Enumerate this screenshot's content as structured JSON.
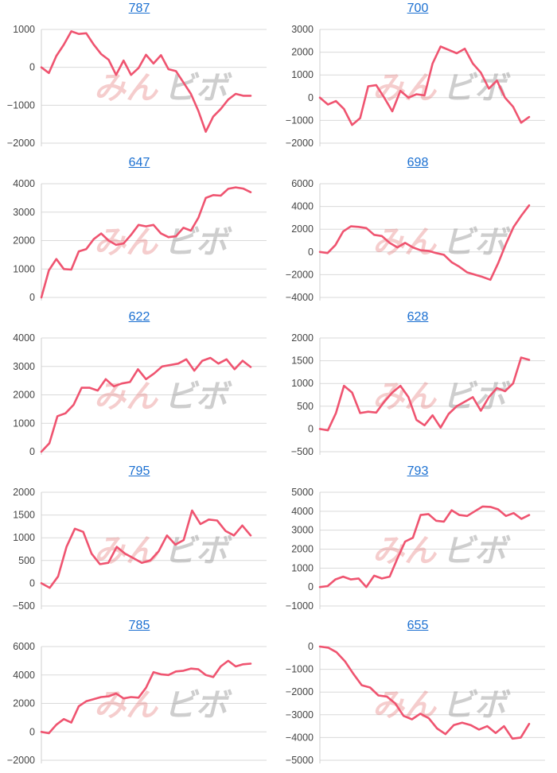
{
  "watermark": {
    "left": "みん",
    "right": "ビボ",
    "left_color": "#e57373",
    "right_color": "#9e9e9e"
  },
  "colors": {
    "series": "#ef5470",
    "title_link": "#1a6fd1"
  },
  "chart_data": [
    {
      "type": "line",
      "title": "787",
      "ylim": [
        -2000,
        1000
      ],
      "yticks": [
        -2000,
        -1000,
        0,
        1000
      ],
      "values": [
        0,
        -150,
        300,
        600,
        950,
        880,
        900,
        600,
        350,
        200,
        -200,
        180,
        -200,
        -20,
        330,
        100,
        320,
        -50,
        -100,
        -400,
        -700,
        -1150,
        -1700,
        -1300,
        -1100,
        -850,
        -700,
        -750,
        -750
      ]
    },
    {
      "type": "line",
      "title": "700",
      "ylim": [
        -2000,
        3000
      ],
      "yticks": [
        -2000,
        -1000,
        0,
        1000,
        2000,
        3000
      ],
      "values": [
        0,
        -300,
        -150,
        -500,
        -1200,
        -900,
        500,
        550,
        0,
        -600,
        300,
        0,
        150,
        100,
        1500,
        2250,
        2100,
        1950,
        2150,
        1500,
        1100,
        400,
        750,
        0,
        -400,
        -1100,
        -850
      ]
    },
    {
      "type": "line",
      "title": "647",
      "ylim": [
        0,
        4000
      ],
      "yticks": [
        0,
        1000,
        2000,
        3000,
        4000
      ],
      "values": [
        0,
        950,
        1350,
        1000,
        980,
        1620,
        1700,
        2050,
        2250,
        2000,
        1850,
        1900,
        2200,
        2550,
        2500,
        2550,
        2250,
        2120,
        2150,
        2450,
        2350,
        2800,
        3500,
        3600,
        3580,
        3820,
        3870,
        3830,
        3700
      ]
    },
    {
      "type": "line",
      "title": "698",
      "ylim": [
        -4000,
        6000
      ],
      "yticks": [
        -4000,
        -2000,
        0,
        2000,
        4000,
        6000
      ],
      "values": [
        0,
        -100,
        600,
        1800,
        2250,
        2200,
        2100,
        1500,
        1400,
        800,
        400,
        800,
        400,
        150,
        100,
        -100,
        -250,
        -900,
        -1300,
        -1800,
        -2000,
        -2200,
        -2450,
        -1000,
        700,
        2200,
        3200,
        4100
      ]
    },
    {
      "type": "line",
      "title": "622",
      "ylim": [
        0,
        4000
      ],
      "yticks": [
        0,
        1000,
        2000,
        3000,
        4000
      ],
      "values": [
        0,
        300,
        1250,
        1350,
        1650,
        2250,
        2250,
        2150,
        2550,
        2300,
        2400,
        2450,
        2900,
        2550,
        2750,
        3000,
        3050,
        3100,
        3250,
        2850,
        3200,
        3300,
        3100,
        3250,
        2900,
        3200,
        2980
      ]
    },
    {
      "type": "line",
      "title": "628",
      "ylim": [
        -500,
        2000
      ],
      "yticks": [
        -500,
        0,
        500,
        1000,
        1500,
        2000
      ],
      "values": [
        0,
        -30,
        350,
        950,
        800,
        350,
        380,
        360,
        600,
        800,
        950,
        700,
        200,
        80,
        300,
        30,
        330,
        500,
        600,
        700,
        400,
        700,
        900,
        830,
        1000,
        1570,
        1520
      ]
    },
    {
      "type": "line",
      "title": "795",
      "ylim": [
        -500,
        2000
      ],
      "yticks": [
        -500,
        0,
        500,
        1000,
        1500,
        2000
      ],
      "values": [
        0,
        -100,
        150,
        800,
        1200,
        1130,
        650,
        420,
        450,
        800,
        650,
        550,
        450,
        500,
        700,
        1050,
        850,
        950,
        1600,
        1300,
        1400,
        1380,
        1150,
        1050,
        1270,
        1050
      ]
    },
    {
      "type": "line",
      "title": "793",
      "ylim": [
        -1000,
        5000
      ],
      "yticks": [
        -1000,
        0,
        1000,
        2000,
        3000,
        4000,
        5000
      ],
      "values": [
        0,
        50,
        400,
        550,
        400,
        450,
        0,
        600,
        450,
        550,
        1500,
        2400,
        2600,
        3800,
        3850,
        3500,
        3450,
        4050,
        3800,
        3750,
        4000,
        4250,
        4230,
        4100,
        3750,
        3900,
        3600,
        3800
      ]
    },
    {
      "type": "line",
      "title": "785",
      "ylim": [
        -2000,
        6000
      ],
      "yticks": [
        -2000,
        0,
        2000,
        4000,
        6000
      ],
      "values": [
        0,
        -100,
        500,
        900,
        650,
        1800,
        2150,
        2300,
        2450,
        2500,
        2700,
        2350,
        2450,
        2400,
        3100,
        4200,
        4050,
        4000,
        4250,
        4300,
        4450,
        4400,
        4000,
        3850,
        4600,
        5000,
        4600,
        4750,
        4800
      ]
    },
    {
      "type": "line",
      "title": "655",
      "ylim": [
        -5000,
        0
      ],
      "yticks": [
        -5000,
        -4000,
        -3000,
        -2000,
        -1000,
        0
      ],
      "values": [
        0,
        -50,
        -250,
        -650,
        -1200,
        -1700,
        -1800,
        -2150,
        -2200,
        -2500,
        -3050,
        -3200,
        -2950,
        -3150,
        -3600,
        -3850,
        -3450,
        -3350,
        -3450,
        -3650,
        -3500,
        -3800,
        -3500,
        -4050,
        -4000,
        -3400
      ]
    }
  ]
}
